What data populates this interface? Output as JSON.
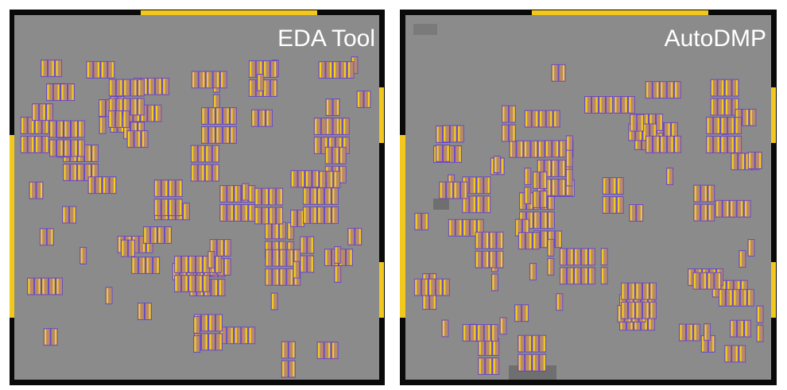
{
  "panels": [
    {
      "label": "EDA Tool"
    },
    {
      "label": "AutoDMP"
    }
  ]
}
